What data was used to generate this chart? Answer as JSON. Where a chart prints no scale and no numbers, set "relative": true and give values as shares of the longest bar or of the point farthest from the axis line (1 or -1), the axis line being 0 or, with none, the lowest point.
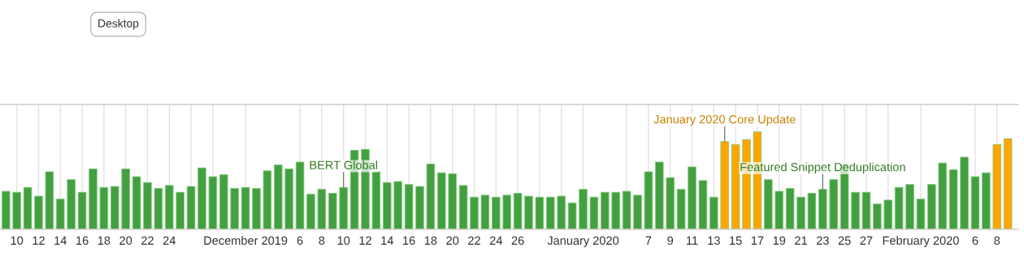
{
  "chart_data": {
    "type": "bar",
    "relative": true,
    "grid": "x",
    "tick_labels": "x",
    "x": [
      "2019-11-09",
      "2019-11-10",
      "2019-11-11",
      "2019-11-12",
      "2019-11-13",
      "2019-11-14",
      "2019-11-15",
      "2019-11-16",
      "2019-11-17",
      "2019-11-18",
      "2019-11-19",
      "2019-11-20",
      "2019-11-21",
      "2019-11-22",
      "2019-11-23",
      "2019-11-24",
      "2019-11-25",
      "2019-11-26",
      "2019-11-27",
      "2019-11-28",
      "2019-11-29",
      "2019-11-30",
      "2019-12-01",
      "2019-12-02",
      "2019-12-03",
      "2019-12-04",
      "2019-12-05",
      "2019-12-06",
      "2019-12-07",
      "2019-12-08",
      "2019-12-09",
      "2019-12-10",
      "2019-12-11",
      "2019-12-12",
      "2019-12-13",
      "2019-12-14",
      "2019-12-15",
      "2019-12-16",
      "2019-12-17",
      "2019-12-18",
      "2019-12-19",
      "2019-12-20",
      "2019-12-21",
      "2019-12-22",
      "2019-12-23",
      "2019-12-24",
      "2019-12-25",
      "2019-12-26",
      "2019-12-27",
      "2019-12-28",
      "2019-12-29",
      "2019-12-30",
      "2019-12-31",
      "2020-01-01",
      "2020-01-02",
      "2020-01-03",
      "2020-01-04",
      "2020-01-05",
      "2020-01-06",
      "2020-01-07",
      "2020-01-08",
      "2020-01-09",
      "2020-01-10",
      "2020-01-11",
      "2020-01-12",
      "2020-01-13",
      "2020-01-14",
      "2020-01-15",
      "2020-01-16",
      "2020-01-17",
      "2020-01-18",
      "2020-01-19",
      "2020-01-20",
      "2020-01-21",
      "2020-01-22",
      "2020-01-23",
      "2020-01-24",
      "2020-01-25",
      "2020-01-26",
      "2020-01-27",
      "2020-01-28",
      "2020-01-29",
      "2020-01-30",
      "2020-01-31",
      "2020-02-01",
      "2020-02-02",
      "2020-02-03",
      "2020-02-04",
      "2020-02-05",
      "2020-02-06",
      "2020-02-07",
      "2020-02-08",
      "2020-02-09"
    ],
    "values": [
      0.39,
      0.38,
      0.43,
      0.34,
      0.59,
      0.31,
      0.51,
      0.38,
      0.62,
      0.43,
      0.44,
      0.62,
      0.54,
      0.48,
      0.42,
      0.45,
      0.38,
      0.44,
      0.63,
      0.54,
      0.56,
      0.42,
      0.43,
      0.42,
      0.6,
      0.66,
      0.62,
      0.69,
      0.36,
      0.41,
      0.37,
      0.43,
      0.81,
      0.82,
      0.59,
      0.48,
      0.49,
      0.46,
      0.44,
      0.67,
      0.58,
      0.57,
      0.45,
      0.33,
      0.35,
      0.33,
      0.35,
      0.37,
      0.34,
      0.33,
      0.33,
      0.34,
      0.27,
      0.41,
      0.33,
      0.38,
      0.38,
      0.39,
      0.35,
      0.59,
      0.69,
      0.53,
      0.41,
      0.64,
      0.5,
      0.33,
      0.9,
      0.87,
      0.92,
      1.0,
      0.51,
      0.39,
      0.42,
      0.33,
      0.37,
      0.41,
      0.51,
      0.67,
      0.38,
      0.38,
      0.26,
      0.3,
      0.43,
      0.46,
      0.31,
      0.46,
      0.68,
      0.61,
      0.74,
      0.54,
      0.58,
      0.87,
      0.93
    ],
    "colors": [
      "#43a040",
      "#43a040",
      "#43a040",
      "#43a040",
      "#43a040",
      "#43a040",
      "#43a040",
      "#43a040",
      "#43a040",
      "#43a040",
      "#43a040",
      "#43a040",
      "#43a040",
      "#43a040",
      "#43a040",
      "#43a040",
      "#43a040",
      "#43a040",
      "#43a040",
      "#43a040",
      "#43a040",
      "#43a040",
      "#43a040",
      "#43a040",
      "#43a040",
      "#43a040",
      "#43a040",
      "#43a040",
      "#43a040",
      "#43a040",
      "#43a040",
      "#43a040",
      "#43a040",
      "#43a040",
      "#43a040",
      "#43a040",
      "#43a040",
      "#43a040",
      "#43a040",
      "#43a040",
      "#43a040",
      "#43a040",
      "#43a040",
      "#43a040",
      "#43a040",
      "#43a040",
      "#43a040",
      "#43a040",
      "#43a040",
      "#43a040",
      "#43a040",
      "#43a040",
      "#43a040",
      "#43a040",
      "#43a040",
      "#43a040",
      "#43a040",
      "#43a040",
      "#43a040",
      "#43a040",
      "#43a040",
      "#43a040",
      "#43a040",
      "#43a040",
      "#43a040",
      "#43a040",
      "#ffa500",
      "#ffa500",
      "#ffa500",
      "#ffa500",
      "#43a040",
      "#43a040",
      "#43a040",
      "#43a040",
      "#43a040",
      "#43a040",
      "#43a040",
      "#43a040",
      "#43a040",
      "#43a040",
      "#43a040",
      "#43a040",
      "#43a040",
      "#43a040",
      "#43a040",
      "#43a040",
      "#43a040",
      "#43a040",
      "#43a040",
      "#43a040",
      "#43a040",
      "#ffa500",
      "#ffa500"
    ],
    "xlim": [
      "2019-11-08T11:00",
      "2020-02-09T23:00"
    ],
    "xticks": [
      {
        "value": "2019-11-10",
        "label": "10"
      },
      {
        "value": "2019-11-12",
        "label": "12"
      },
      {
        "value": "2019-11-14",
        "label": "14"
      },
      {
        "value": "2019-11-16",
        "label": "16"
      },
      {
        "value": "2019-11-18",
        "label": "18"
      },
      {
        "value": "2019-11-20",
        "label": "20"
      },
      {
        "value": "2019-11-22",
        "label": "22"
      },
      {
        "value": "2019-11-24",
        "label": "24"
      },
      {
        "value": "2019-11-26",
        "label": null
      },
      {
        "value": "2019-11-28",
        "label": null
      },
      {
        "value": "2019-12-01",
        "label": "December 2019"
      },
      {
        "value": "2019-12-06",
        "label": "6"
      },
      {
        "value": "2019-12-08",
        "label": "8"
      },
      {
        "value": "2019-12-10",
        "label": "10"
      },
      {
        "value": "2019-12-12",
        "label": "12"
      },
      {
        "value": "2019-12-14",
        "label": "14"
      },
      {
        "value": "2019-12-16",
        "label": "16"
      },
      {
        "value": "2019-12-18",
        "label": "18"
      },
      {
        "value": "2019-12-20",
        "label": "20"
      },
      {
        "value": "2019-12-22",
        "label": "22"
      },
      {
        "value": "2019-12-24",
        "label": "24"
      },
      {
        "value": "2019-12-26",
        "label": "26"
      },
      {
        "value": "2019-12-28",
        "label": null
      },
      {
        "value": "2019-12-30",
        "label": null
      },
      {
        "value": "2020-01-01",
        "label": "January 2020"
      },
      {
        "value": "2020-01-05",
        "label": null
      },
      {
        "value": "2020-01-07",
        "label": "7"
      },
      {
        "value": "2020-01-09",
        "label": "9"
      },
      {
        "value": "2020-01-11",
        "label": "11"
      },
      {
        "value": "2020-01-13",
        "label": "13"
      },
      {
        "value": "2020-01-15",
        "label": "15"
      },
      {
        "value": "2020-01-17",
        "label": "17"
      },
      {
        "value": "2020-01-19",
        "label": "19"
      },
      {
        "value": "2020-01-21",
        "label": "21"
      },
      {
        "value": "2020-01-23",
        "label": "23"
      },
      {
        "value": "2020-01-25",
        "label": "25"
      },
      {
        "value": "2020-01-27",
        "label": "27"
      },
      {
        "value": "2020-01-29",
        "label": null
      },
      {
        "value": "2020-02-01",
        "label": "February 2020"
      },
      {
        "value": "2020-02-06",
        "label": "6"
      },
      {
        "value": "2020-02-08",
        "label": "8"
      }
    ],
    "annotations": [
      {
        "text": "BERT Global",
        "x": "2019-12-10",
        "y": 0.43
      },
      {
        "text": "January 2020 Core Update",
        "x": "2020-01-14",
        "y": 0.9
      },
      {
        "text": "Featured Snippet Deduplication",
        "x": "2020-01-23",
        "y": 0.41
      },
      "Desktop"
    ]
  }
}
